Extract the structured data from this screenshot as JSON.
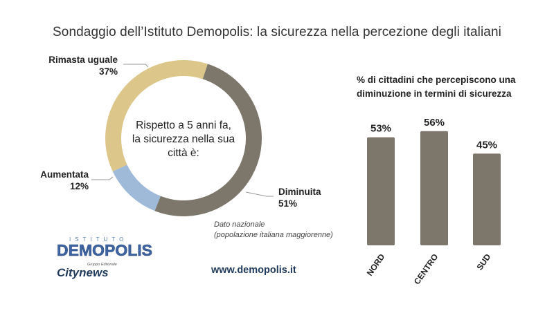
{
  "title": "Sondaggio dell’Istituto Demopolis: la sicurezza nella percezione degli italiani",
  "colors": {
    "uguale": "#dcc68a",
    "diminuita": "#7d766b",
    "aumentata": "#9ebad8",
    "bar": "#7d766b"
  },
  "chart_data": [
    {
      "type": "pie",
      "title": "",
      "center_text": [
        "Rispetto a 5 anni fa,",
        "la sicurezza nella sua",
        "città è:"
      ],
      "slices": [
        {
          "label": "Rimasta uguale",
          "value": 37,
          "display": "37%"
        },
        {
          "label": "Diminuita",
          "value": 51,
          "display": "51%"
        },
        {
          "label": "Aumentata",
          "value": 12,
          "display": "12%"
        }
      ],
      "note": [
        "Dato nazionale",
        "(popolazione italiana maggiorenne)"
      ]
    },
    {
      "type": "bar",
      "title_lines": [
        "% di cittadini che percepiscono una",
        "diminuzione in termini di sicurezza"
      ],
      "categories": [
        "NORD",
        "CENTRO",
        "SUD"
      ],
      "values": [
        53,
        56,
        45
      ],
      "value_labels": [
        "53%",
        "56%",
        "45%"
      ],
      "ylim": [
        0,
        100
      ]
    }
  ],
  "footer": {
    "logo_top": "ISTITUTO",
    "logo_main": "DEMOPOLIS",
    "logo2_small": "Gruppo Editoriale",
    "logo2_main": "Citynews",
    "website": "www.demopolis.it"
  }
}
